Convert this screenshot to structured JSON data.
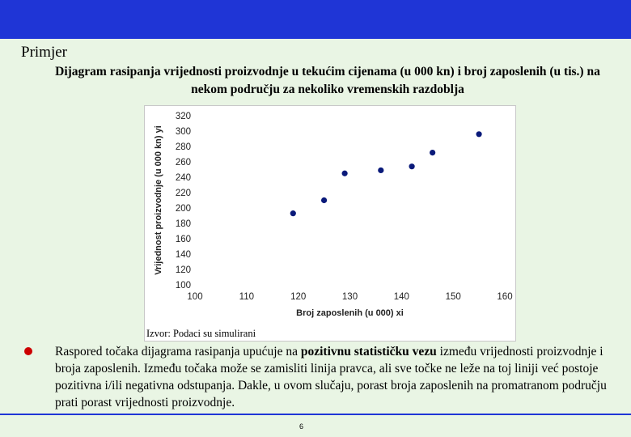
{
  "slide": {
    "heading": "Primjer",
    "subtitle": "Dijagram rasipanja vrijednosti proizvodnje u tekućim cijenama (u 000 kn) i broj zaposlenih (u tis.) na nekom području za nekoliko vremenskih razdoblja",
    "source": "Izvor: Podaci su simulirani",
    "body_part1": "Raspored točaka dijagrama rasipanja upućuje na ",
    "body_bold": "pozitivnu statističku vezu",
    "body_part2": " između vrijednosti proizvodnje i broja zaposlenih. Između točaka može se zamisliti linija pravca, ali sve točke ne leže na toj liniji već postoje pozitivna i/ili negativna odstupanja. Dakle, u ovom slučaju, porast broja zaposlenih na promatranom području prati porast vrijednosti proizvodnje.",
    "page_number": "6"
  },
  "colors": {
    "top_bar": "#1f35d6",
    "background": "#e9f5e4",
    "bullet": "#cc0000",
    "points": "#0a1a7a"
  },
  "chart_data": {
    "type": "scatter",
    "title": "",
    "xlabel": "Broj zaposlenih (u 000) xi",
    "ylabel": "Vrijednost proizvodnje (u 000 kn) yi",
    "xlim": [
      100,
      160
    ],
    "ylim": [
      100,
      320
    ],
    "xticks": [
      100,
      110,
      120,
      130,
      140,
      150,
      160
    ],
    "yticks": [
      100,
      120,
      140,
      160,
      180,
      200,
      220,
      240,
      260,
      280,
      300,
      320
    ],
    "grid": false,
    "legend": "none",
    "series": [
      {
        "x": [
          119,
          125,
          129,
          136,
          142,
          146,
          155
        ],
        "y": [
          193,
          210,
          245,
          249,
          254,
          272,
          296
        ]
      }
    ]
  }
}
